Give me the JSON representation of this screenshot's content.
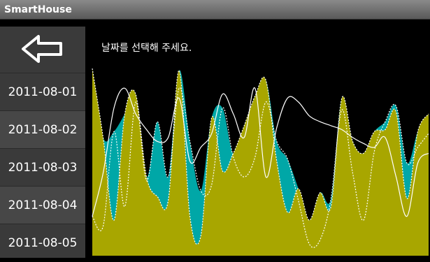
{
  "app": {
    "title": "SmartHouse"
  },
  "sidebar": {
    "back_icon": "back-arrow-icon",
    "dates": [
      "2011-08-01",
      "2011-08-02",
      "2011-08-03",
      "2011-08-04",
      "2011-08-05"
    ]
  },
  "main": {
    "prompt": "날짜를 선택해 주세요."
  },
  "colors": {
    "teal": "#00a7a7",
    "olive": "#a8a600",
    "background": "#000000",
    "sidebar": "#3a3a3a"
  },
  "chart_data": {
    "type": "area",
    "series": [
      {
        "values": [
          20,
          15,
          63,
          25,
          78,
          38,
          68,
          40,
          85,
          58,
          33,
          36,
          75,
          50,
          40,
          50,
          78,
          58,
          49,
          28,
          6,
          8,
          29,
          74,
          42,
          18,
          53,
          68,
          76,
          47,
          55,
          62
        ]
      },
      {
        "values": [
          20,
          42,
          75,
          85,
          72,
          64,
          58,
          60,
          80,
          48,
          55,
          62,
          82,
          72,
          60,
          85,
          40,
          65,
          80,
          78,
          71,
          68,
          66,
          64,
          60,
          57,
          55,
          60,
          40,
          20,
          47,
          52
        ]
      },
      {
        "values": [
          95,
          60,
          18,
          72,
          82,
          40,
          30,
          28,
          94,
          20,
          10,
          70,
          43,
          52,
          66,
          81,
          89,
          48,
          22,
          34,
          18,
          32,
          25,
          80,
          58,
          52,
          63,
          64,
          73,
          29,
          63,
          72
        ]
      }
    ],
    "ylim": [
      0,
      100
    ]
  }
}
